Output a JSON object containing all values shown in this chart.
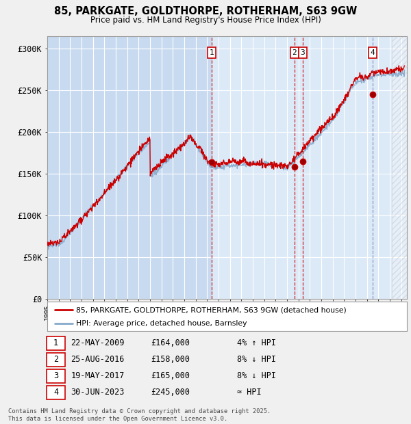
{
  "title": "85, PARKGATE, GOLDTHORPE, ROTHERHAM, S63 9GW",
  "subtitle": "Price paid vs. HM Land Registry's House Price Index (HPI)",
  "ylabel_ticks": [
    "£0",
    "£50K",
    "£100K",
    "£150K",
    "£200K",
    "£250K",
    "£300K"
  ],
  "ylim": [
    0,
    315000
  ],
  "xlim_start": 1995.0,
  "xlim_end": 2026.5,
  "bg_light": "#dce9f7",
  "bg_dark": "#c8daf0",
  "grid_color": "#ffffff",
  "sale_dates": [
    2009.39,
    2016.65,
    2017.38,
    2023.5
  ],
  "sale_prices": [
    164000,
    158000,
    165000,
    245000
  ],
  "sale_labels": [
    "1",
    "2",
    "3",
    "4"
  ],
  "red_line_color": "#cc0000",
  "blue_line_color": "#88aacc",
  "legend_line1": "85, PARKGATE, GOLDTHORPE, ROTHERHAM, S63 9GW (detached house)",
  "legend_line2": "HPI: Average price, detached house, Barnsley",
  "table_data": [
    [
      "1",
      "22-MAY-2009",
      "£164,000",
      "4% ↑ HPI"
    ],
    [
      "2",
      "25-AUG-2016",
      "£158,000",
      "8% ↓ HPI"
    ],
    [
      "3",
      "19-MAY-2017",
      "£165,000",
      "8% ↓ HPI"
    ],
    [
      "4",
      "30-JUN-2023",
      "£245,000",
      "≈ HPI"
    ]
  ],
  "footer": "Contains HM Land Registry data © Crown copyright and database right 2025.\nThis data is licensed under the Open Government Licence v3.0."
}
